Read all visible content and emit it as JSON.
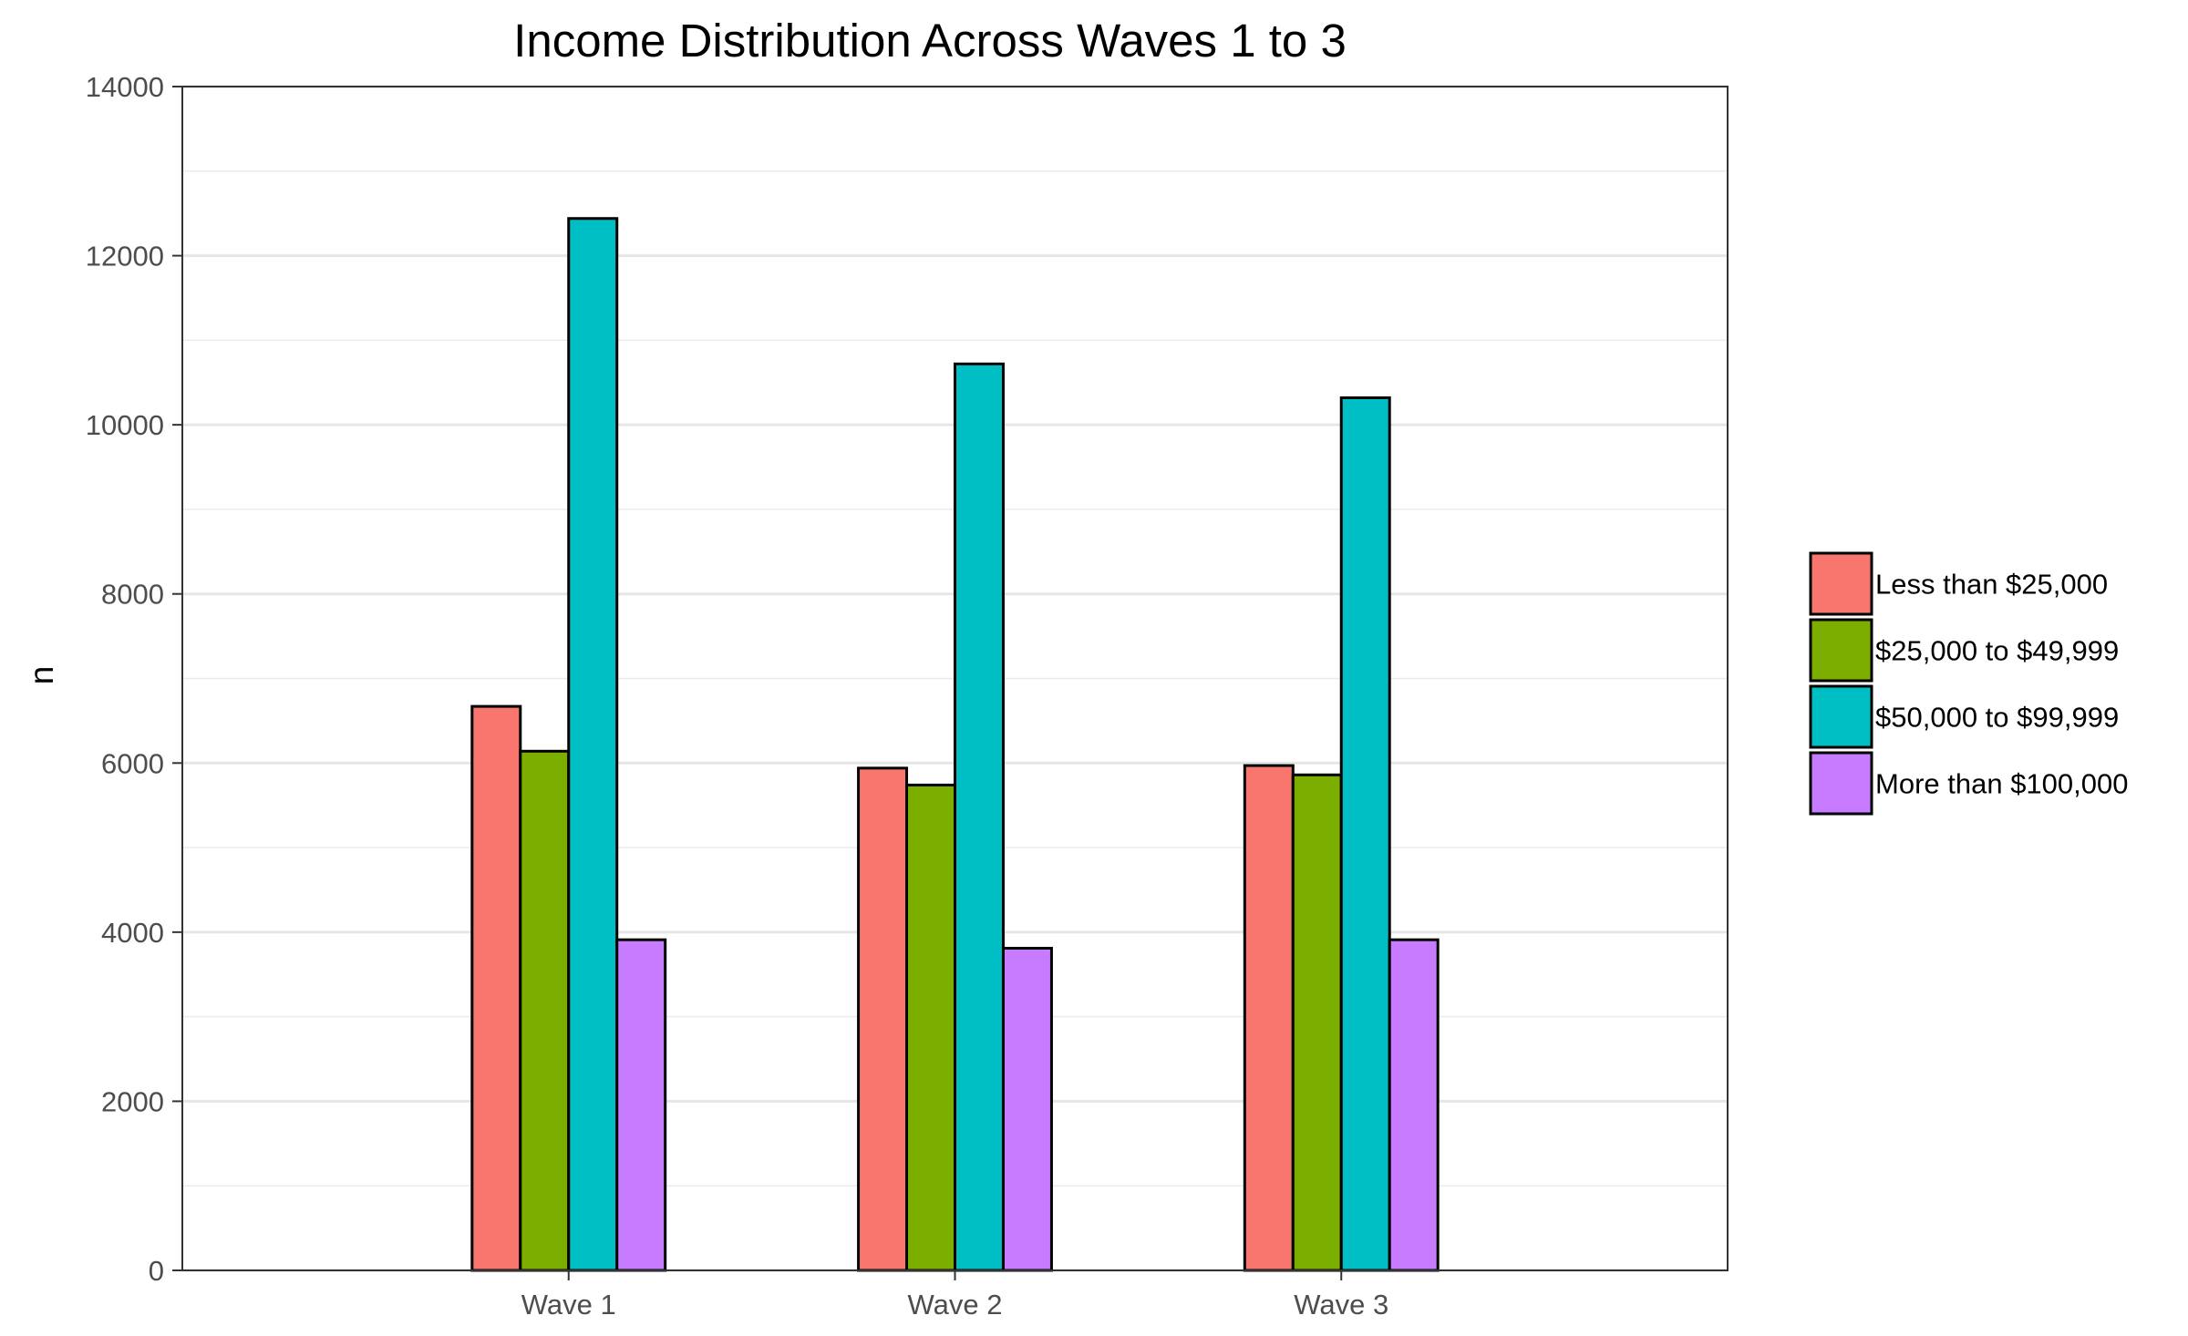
{
  "chart_data": {
    "type": "bar",
    "title": "Income Distribution Across Waves 1 to 3",
    "xlabel": "",
    "ylabel": "n",
    "ylim": [
      0,
      14000
    ],
    "yticks": [
      0,
      2000,
      4000,
      6000,
      8000,
      10000,
      12000,
      14000
    ],
    "categories": [
      "Wave 1",
      "Wave 2",
      "Wave 3"
    ],
    "series": [
      {
        "name": "Less than $25,000",
        "color": "#F8766D",
        "values": [
          6670,
          5940,
          5970
        ]
      },
      {
        "name": "$25,000 to $49,999",
        "color": "#7CAE00",
        "values": [
          6140,
          5740,
          5860
        ]
      },
      {
        "name": "$50,000 to $99,999",
        "color": "#00BFC4",
        "values": [
          12440,
          10720,
          10320
        ]
      },
      {
        "name": "More than $100,000",
        "color": "#C77CFF",
        "values": [
          3910,
          3810,
          3910
        ]
      }
    ],
    "grid": true,
    "legend": "right"
  }
}
